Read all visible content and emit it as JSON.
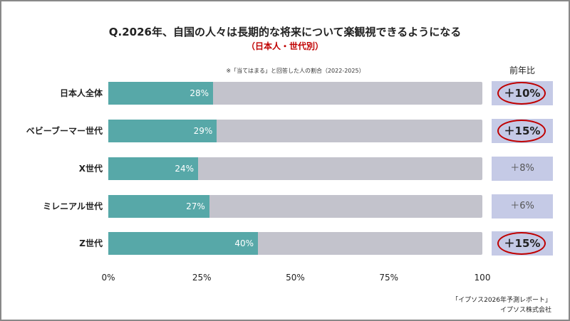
{
  "chart_data": {
    "type": "bar",
    "orientation": "horizontal",
    "stacked_to_100": true,
    "title": "Q.2026年、自国の人々は長期的な将来について楽観視できるようになる",
    "subtitle": "（日本人・世代別）",
    "note": "※「当てはまる」と回答した人の割合（2022-2025）",
    "categories": [
      "日本人全体",
      "ベビーブーマー世代",
      "X世代",
      "ミレニアル世代",
      "Z世代"
    ],
    "values": [
      28,
      29,
      24,
      27,
      40
    ],
    "value_labels": [
      "28%",
      "29%",
      "24%",
      "27%",
      "40%"
    ],
    "xlim": [
      0,
      100
    ],
    "x_ticks": [
      "0%",
      "25%",
      "50%",
      "75%",
      "100"
    ],
    "yoy_header": "前年比",
    "yoy": [
      "＋10%",
      "＋15%",
      "＋8%",
      "＋6%",
      "＋15%"
    ],
    "yoy_highlighted": [
      true,
      true,
      false,
      false,
      true
    ],
    "colors": {
      "bar": "#57a8a8",
      "track": "#c3c3cc",
      "yoy_bg": "#c5cae6",
      "highlight": "#c00000"
    }
  },
  "source": [
    "「イプソス2026年予測レポート」",
    "イプソス株式会社"
  ]
}
